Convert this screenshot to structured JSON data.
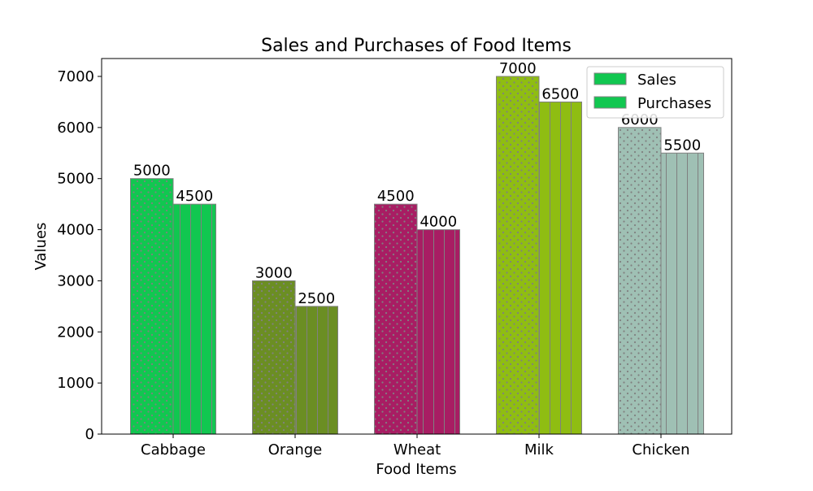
{
  "chart_data": {
    "type": "bar",
    "title": "Sales and Purchases of Food Items",
    "xlabel": "Food Items",
    "ylabel": "Values",
    "categories": [
      "Cabbage",
      "Orange",
      "Wheat",
      "Milk",
      "Chicken"
    ],
    "category_colors": [
      "#11c750",
      "#6b8e23",
      "#a81d63",
      "#8fbd12",
      "#9fc0b4"
    ],
    "series": [
      {
        "name": "Sales",
        "values": [
          5000,
          3000,
          4500,
          7000,
          6000
        ],
        "pattern": "dots"
      },
      {
        "name": "Purchases",
        "values": [
          4500,
          2500,
          4000,
          6500,
          5500
        ],
        "pattern": "vertical-lines"
      }
    ],
    "data_labels": [
      [
        "5000",
        "3000",
        "4500",
        "7000",
        "6000"
      ],
      [
        "4500",
        "2500",
        "4000",
        "6500",
        "5500"
      ]
    ],
    "ylim": [
      0,
      7350
    ],
    "yticks": [
      0,
      1000,
      2000,
      3000,
      4000,
      5000,
      6000,
      7000
    ],
    "ytick_labels": [
      "0",
      "1000",
      "2000",
      "3000",
      "4000",
      "5000",
      "6000",
      "7000"
    ],
    "grid": false,
    "legend": {
      "position": "upper right",
      "entries": [
        "Sales",
        "Purchases"
      ],
      "swatch_color": "#11c750"
    },
    "edge_color": "#808080"
  }
}
